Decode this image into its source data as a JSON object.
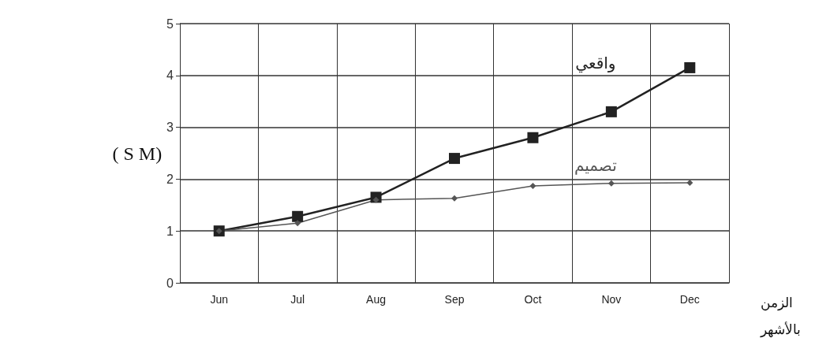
{
  "chart_data": {
    "type": "line",
    "ylabel": "( S M)",
    "xlabel": "الزمن\nبالأشهر",
    "categories": [
      "Jun",
      "Jul",
      "Aug",
      "Sep",
      "Oct",
      "Nov",
      "Dec"
    ],
    "series": [
      {
        "name": "واقعي",
        "color": "#222222",
        "marker": "square",
        "values": [
          1.0,
          1.28,
          1.65,
          2.4,
          2.8,
          3.3,
          4.15
        ]
      },
      {
        "name": "تصميم",
        "color": "#555555",
        "marker": "diamond",
        "values": [
          1.0,
          1.15,
          1.6,
          1.63,
          1.87,
          1.92,
          1.93
        ]
      }
    ],
    "ylim": [
      0,
      5
    ],
    "yticks": [
      0,
      1,
      2,
      3,
      4,
      5
    ],
    "grid": true,
    "legend": false,
    "line_style": "solid"
  }
}
